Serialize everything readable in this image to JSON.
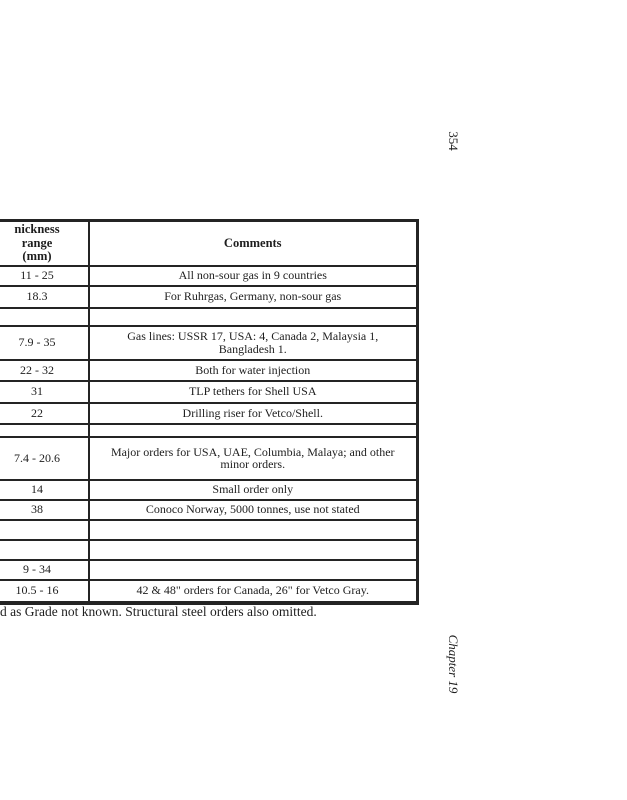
{
  "page": {
    "background": "#ffffff",
    "ink": "#242424",
    "page_number": "354",
    "chapter_label": "Chapter 19",
    "footnote": "d as Grade not known. Structural steel orders also omitted."
  },
  "table": {
    "header": {
      "col1_line1": "nickness range",
      "col1_line2": "(mm)",
      "col2": "Comments"
    },
    "rows": [
      {
        "thickness": "11 - 25",
        "comment": "All non-sour gas in 9 countries",
        "h": 20
      },
      {
        "thickness": "18.3",
        "comment": "For Ruhrgas, Germany, non-sour gas",
        "h": 22
      },
      {
        "thickness": "",
        "comment": "",
        "h": 18
      },
      {
        "thickness": "7.9 - 35",
        "comment": "Gas lines: USSR 17, USA: 4, Canada 2, Malaysia 1,\nBangladesh 1.",
        "h": 34
      },
      {
        "thickness": "22 - 32",
        "comment": "Both for water injection",
        "h": 21
      },
      {
        "thickness": "31",
        "comment": "TLP tethers for Shell USA",
        "h": 22
      },
      {
        "thickness": "22",
        "comment": "Drilling riser for Vetco/Shell.",
        "h": 21
      },
      {
        "thickness": "",
        "comment": "",
        "h": 13
      },
      {
        "thickness": "7.4 - 20.6",
        "comment": "Major orders for USA, UAE, Columbia, Malaya; and other\nminor orders.",
        "h": 43
      },
      {
        "thickness": "14",
        "comment": "Small order only",
        "h": 20
      },
      {
        "thickness": "38",
        "comment": "Conoco Norway, 5000 tonnes, use not stated",
        "h": 20
      },
      {
        "thickness": "",
        "comment": "",
        "h": 20
      },
      {
        "thickness": "",
        "comment": "",
        "h": 20
      },
      {
        "thickness": "9 - 34",
        "comment": "",
        "h": 20
      },
      {
        "thickness": "10.5 - 16",
        "comment": "42 & 48\" orders for Canada, 26\" for Vetco Gray.",
        "h": 23
      }
    ]
  }
}
